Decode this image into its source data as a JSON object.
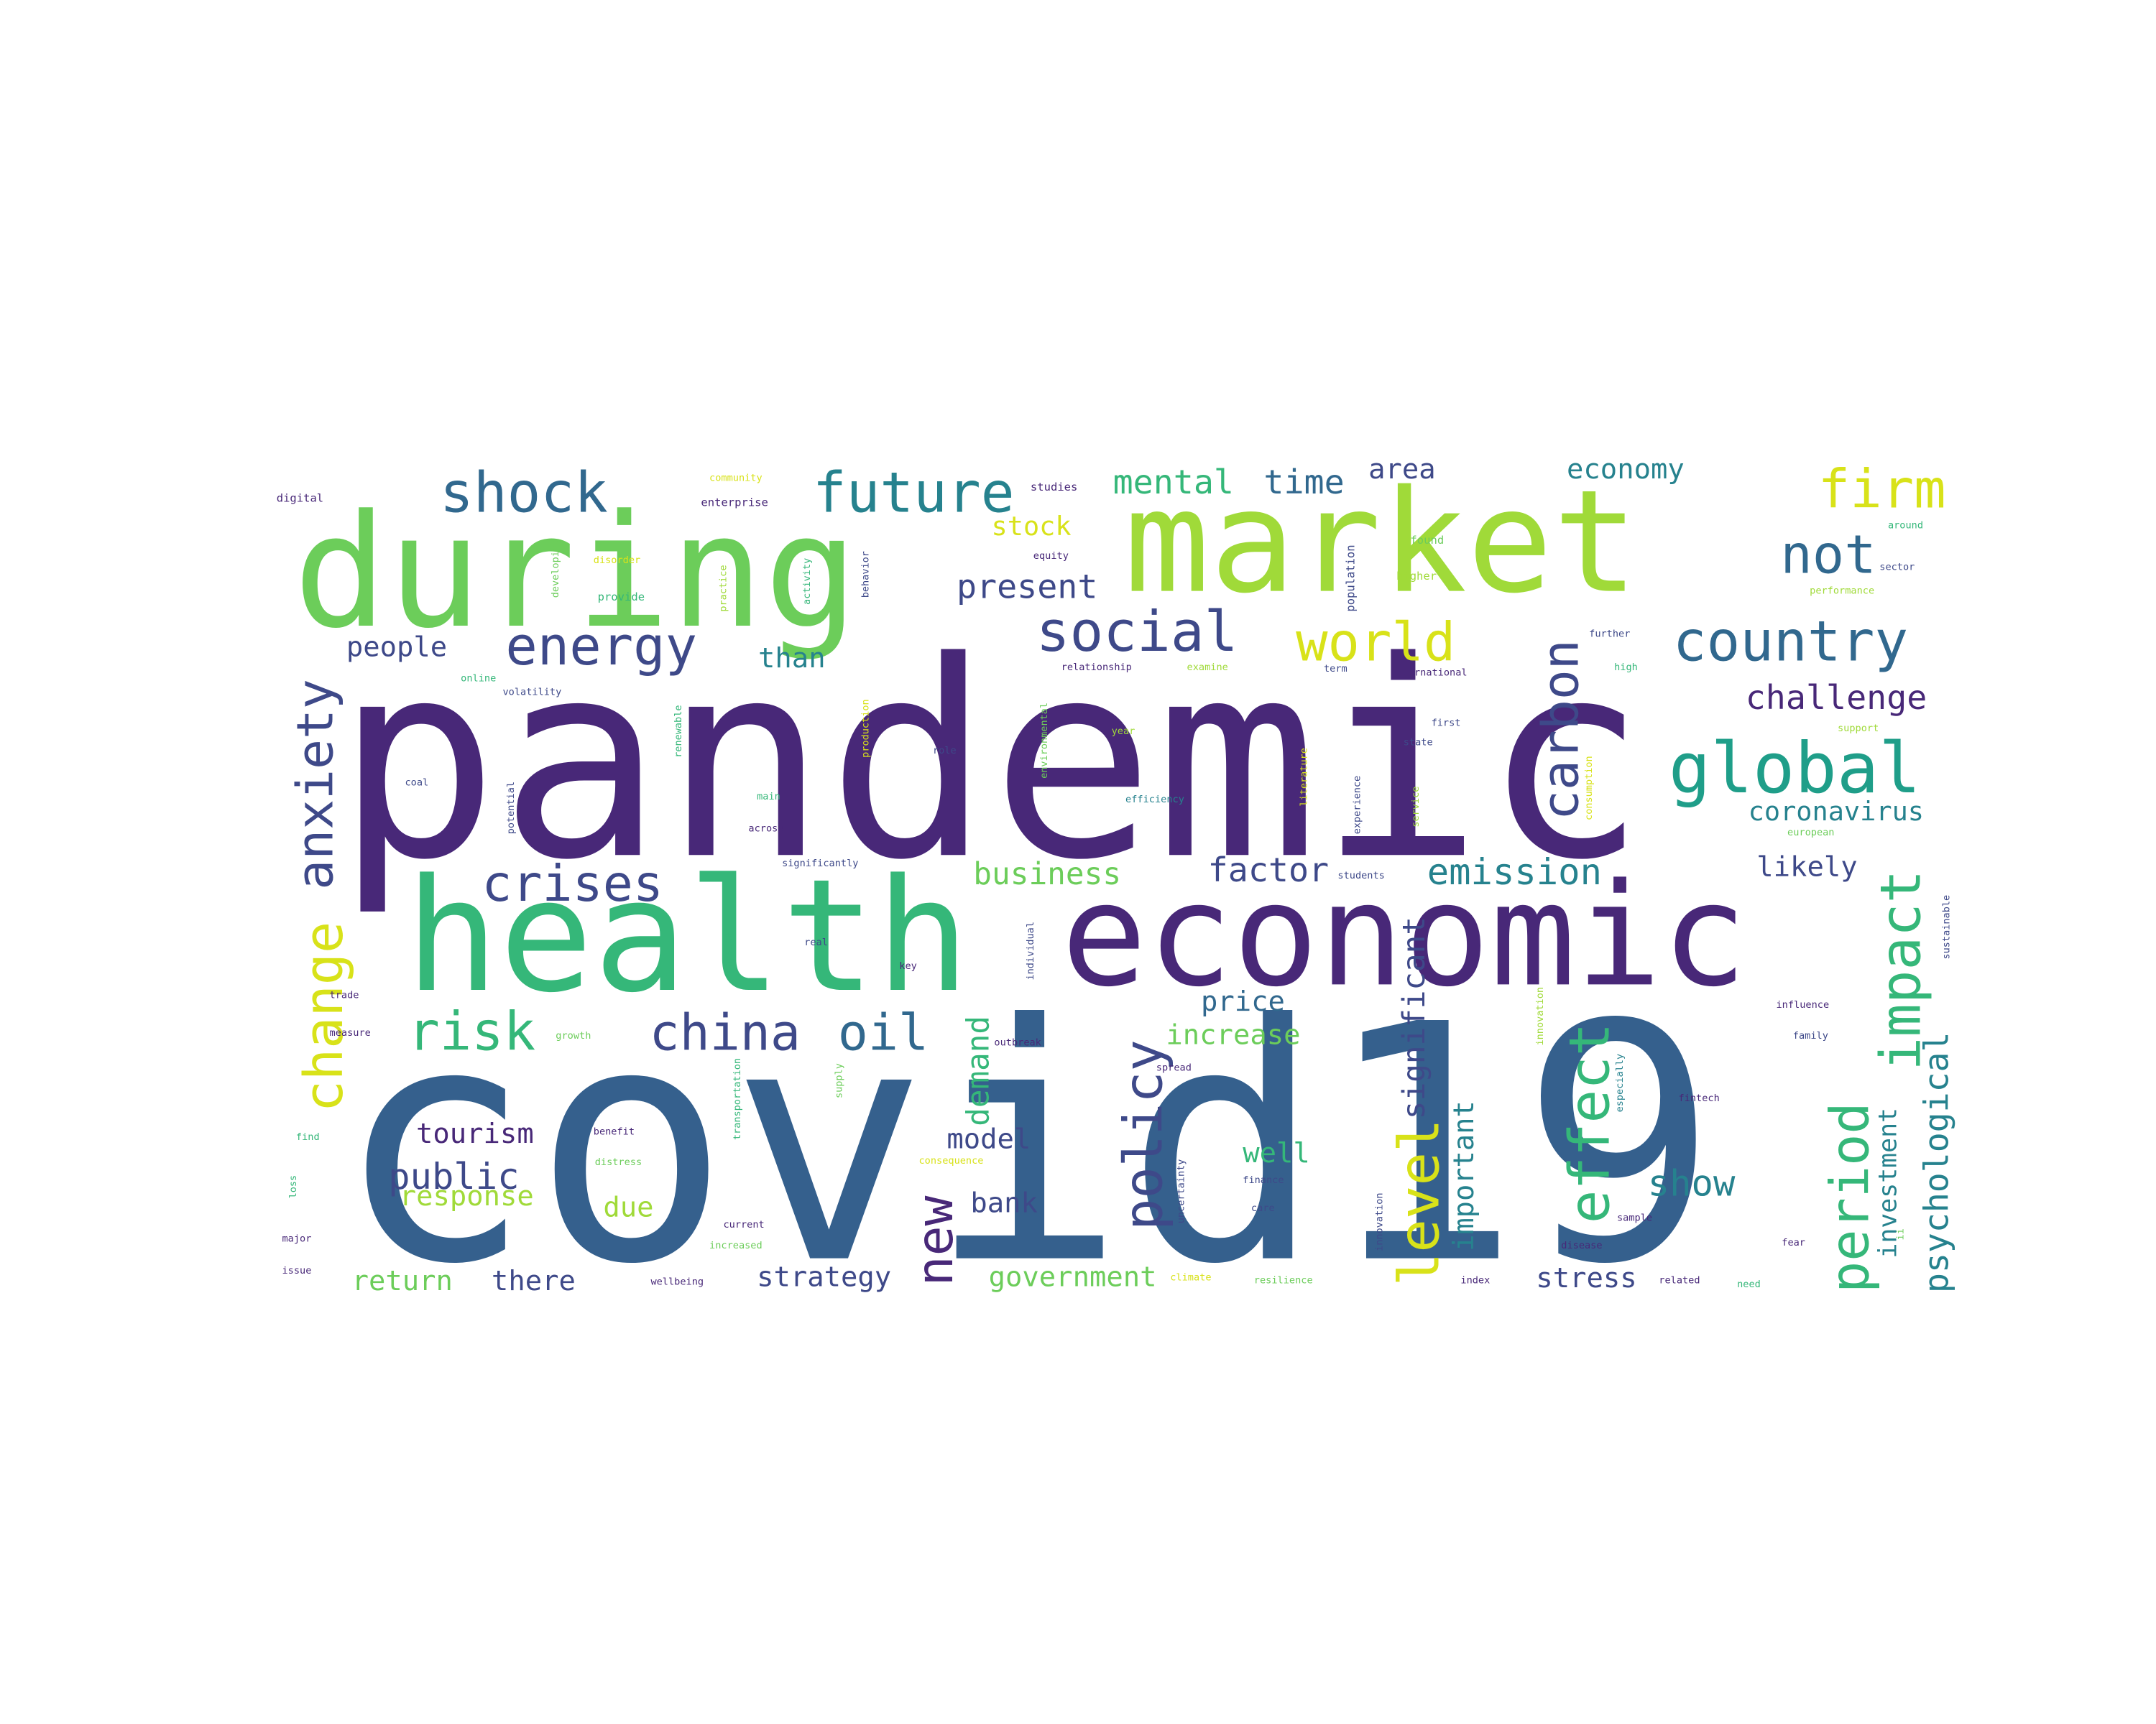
{
  "word_cloud": {
    "palette": {
      "dark_purple": "#482878",
      "blue": "#35608d",
      "teal": "#26828e",
      "green": "#35b779",
      "light_green": "#6ccd5a",
      "lime": "#a0da39",
      "yellow": "#d8e219"
    },
    "words": [
      {
        "text": "pandemic",
        "color": "#482878"
      },
      {
        "text": "covid19",
        "color": "#35608d"
      },
      {
        "text": "economic",
        "color": "#482878"
      },
      {
        "text": "health",
        "color": "#35b779"
      },
      {
        "text": "during",
        "color": "#6ccd5a"
      },
      {
        "text": "market",
        "color": "#a0da39"
      },
      {
        "text": "shock",
        "color": "#31688e"
      },
      {
        "text": "future",
        "color": "#26828e"
      },
      {
        "text": "mental",
        "color": "#35b779"
      },
      {
        "text": "time",
        "color": "#31688e"
      },
      {
        "text": "area",
        "color": "#3e4989"
      },
      {
        "text": "economy",
        "color": "#26828e"
      },
      {
        "text": "firm",
        "color": "#d8e219"
      },
      {
        "text": "not",
        "color": "#31688e"
      },
      {
        "text": "stock",
        "color": "#d8e219"
      },
      {
        "text": "present",
        "color": "#3e4989"
      },
      {
        "text": "social",
        "color": "#3e4989"
      },
      {
        "text": "world",
        "color": "#d8e219"
      },
      {
        "text": "country",
        "color": "#31688e"
      },
      {
        "text": "energy",
        "color": "#3e4989"
      },
      {
        "text": "people",
        "color": "#3e4989"
      },
      {
        "text": "than",
        "color": "#26828e"
      },
      {
        "text": "carbon",
        "color": "#3e4989"
      },
      {
        "text": "global",
        "color": "#1f9e89"
      },
      {
        "text": "challenge",
        "color": "#482878"
      },
      {
        "text": "anxiety",
        "color": "#3e4989"
      },
      {
        "text": "crises",
        "color": "#3e4989"
      },
      {
        "text": "business",
        "color": "#6ccd5a"
      },
      {
        "text": "factor",
        "color": "#3e4989"
      },
      {
        "text": "emission",
        "color": "#26828e"
      },
      {
        "text": "coronavirus",
        "color": "#26828e"
      },
      {
        "text": "likely",
        "color": "#3e4989"
      },
      {
        "text": "impact",
        "color": "#35b779"
      },
      {
        "text": "change",
        "color": "#d8e219"
      },
      {
        "text": "risk",
        "color": "#35b779"
      },
      {
        "text": "china",
        "color": "#3e4989"
      },
      {
        "text": "oil",
        "color": "#31688e"
      },
      {
        "text": "new",
        "color": "#482878"
      },
      {
        "text": "demand",
        "color": "#35b779"
      },
      {
        "text": "policy",
        "color": "#3e4989"
      },
      {
        "text": "price",
        "color": "#31688e"
      },
      {
        "text": "increase",
        "color": "#6ccd5a"
      },
      {
        "text": "significant",
        "color": "#3e4989"
      },
      {
        "text": "level",
        "color": "#d8e219"
      },
      {
        "text": "effect",
        "color": "#35b779"
      },
      {
        "text": "important",
        "color": "#26828e"
      },
      {
        "text": "period",
        "color": "#35b779"
      },
      {
        "text": "investment",
        "color": "#26828e"
      },
      {
        "text": "psychological",
        "color": "#26828e"
      },
      {
        "text": "tourism",
        "color": "#482878"
      },
      {
        "text": "public",
        "color": "#3e4989"
      },
      {
        "text": "response",
        "color": "#a0da39"
      },
      {
        "text": "due",
        "color": "#a0da39"
      },
      {
        "text": "model",
        "color": "#3e4989"
      },
      {
        "text": "bank",
        "color": "#3e4989"
      },
      {
        "text": "well",
        "color": "#35b779"
      },
      {
        "text": "show",
        "color": "#26828e"
      },
      {
        "text": "return",
        "color": "#6ccd5a"
      },
      {
        "text": "there",
        "color": "#3e4989"
      },
      {
        "text": "strategy",
        "color": "#3e4989"
      },
      {
        "text": "government",
        "color": "#6ccd5a"
      },
      {
        "text": "stress",
        "color": "#3e4989"
      },
      {
        "text": "digital",
        "color": "#482878"
      },
      {
        "text": "community",
        "color": "#d8e219"
      },
      {
        "text": "enterprise",
        "color": "#482878"
      },
      {
        "text": "studies",
        "color": "#482878"
      },
      {
        "text": "found",
        "color": "#6ccd5a"
      },
      {
        "text": "around",
        "color": "#35b779"
      },
      {
        "text": "population",
        "color": "#3e4989"
      },
      {
        "text": "higher",
        "color": "#a0da39"
      },
      {
        "text": "sector",
        "color": "#3e4989"
      },
      {
        "text": "performance",
        "color": "#a0da39"
      },
      {
        "text": "equity",
        "color": "#482878"
      },
      {
        "text": "provide",
        "color": "#35b779"
      },
      {
        "text": "practice",
        "color": "#a0da39"
      },
      {
        "text": "activity",
        "color": "#35b779"
      },
      {
        "text": "behavior",
        "color": "#3e4989"
      },
      {
        "text": "developing",
        "color": "#6ccd5a"
      },
      {
        "text": "disorder",
        "color": "#d8e219"
      },
      {
        "text": "further",
        "color": "#3e4989"
      },
      {
        "text": "high",
        "color": "#35b779"
      },
      {
        "text": "online",
        "color": "#35b779"
      },
      {
        "text": "relationship",
        "color": "#482878"
      },
      {
        "text": "examine",
        "color": "#a0da39"
      },
      {
        "text": "term",
        "color": "#3e4989"
      },
      {
        "text": "international",
        "color": "#482878"
      },
      {
        "text": "volatility",
        "color": "#3e4989"
      },
      {
        "text": "renewable",
        "color": "#35b779"
      },
      {
        "text": "production",
        "color": "#d8e219"
      },
      {
        "text": "role",
        "color": "#3e4989"
      },
      {
        "text": "environmental",
        "color": "#6ccd5a"
      },
      {
        "text": "year",
        "color": "#a0da39"
      },
      {
        "text": "first",
        "color": "#3e4989"
      },
      {
        "text": "state",
        "color": "#3e4989"
      },
      {
        "text": "support",
        "color": "#a0da39"
      },
      {
        "text": "coal",
        "color": "#3e4989"
      },
      {
        "text": "potential",
        "color": "#3e4989"
      },
      {
        "text": "main",
        "color": "#35b779"
      },
      {
        "text": "efficiency",
        "color": "#26828e"
      },
      {
        "text": "literature",
        "color": "#d8e219"
      },
      {
        "text": "experience",
        "color": "#3e4989"
      },
      {
        "text": "service",
        "color": "#a0da39"
      },
      {
        "text": "consumption",
        "color": "#d8e219"
      },
      {
        "text": "european",
        "color": "#6ccd5a"
      },
      {
        "text": "across",
        "color": "#482878"
      },
      {
        "text": "significantly",
        "color": "#3e4989"
      },
      {
        "text": "students",
        "color": "#3e4989"
      },
      {
        "text": "sustainable",
        "color": "#3e4989"
      },
      {
        "text": "physical",
        "color": "#35b779"
      },
      {
        "text": "real",
        "color": "#3e4989"
      },
      {
        "text": "key",
        "color": "#482878"
      },
      {
        "text": "individual",
        "color": "#3e4989"
      },
      {
        "text": "trade",
        "color": "#482878"
      },
      {
        "text": "measure",
        "color": "#482878"
      },
      {
        "text": "growth",
        "color": "#6ccd5a"
      },
      {
        "text": "outbreak",
        "color": "#482878"
      },
      {
        "text": "spread",
        "color": "#482878"
      },
      {
        "text": "influence",
        "color": "#482878"
      },
      {
        "text": "family",
        "color": "#3e4989"
      },
      {
        "text": "innovation",
        "color": "#a0da39"
      },
      {
        "text": "especially",
        "color": "#26828e"
      },
      {
        "text": "transportation",
        "color": "#35b779"
      },
      {
        "text": "supply",
        "color": "#6ccd5a"
      },
      {
        "text": "fintech",
        "color": "#482878"
      },
      {
        "text": "find",
        "color": "#35b779"
      },
      {
        "text": "benefit",
        "color": "#482878"
      },
      {
        "text": "distress",
        "color": "#6ccd5a"
      },
      {
        "text": "consequence",
        "color": "#d8e219"
      },
      {
        "text": "uncertainty",
        "color": "#3e4989"
      },
      {
        "text": "finance",
        "color": "#3e4989"
      },
      {
        "text": "care",
        "color": "#3e4989"
      },
      {
        "text": "loss",
        "color": "#35b779"
      },
      {
        "text": "major",
        "color": "#482878"
      },
      {
        "text": "issue",
        "color": "#482878"
      },
      {
        "text": "current",
        "color": "#482878"
      },
      {
        "text": "increased",
        "color": "#6ccd5a"
      },
      {
        "text": "wellbeing",
        "color": "#482878"
      },
      {
        "text": "climate",
        "color": "#d8e219"
      },
      {
        "text": "resilience",
        "color": "#6ccd5a"
      },
      {
        "text": "sample",
        "color": "#482878"
      },
      {
        "text": "disease",
        "color": "#482878"
      },
      {
        "text": "fear",
        "color": "#482878"
      },
      {
        "text": "index",
        "color": "#482878"
      },
      {
        "text": "related",
        "color": "#482878"
      },
      {
        "text": "need",
        "color": "#35b779"
      },
      {
        "text": "innovation",
        "color": "#3e4989"
      },
      {
        "text": "ii",
        "color": "#6ccd5a"
      }
    ]
  }
}
